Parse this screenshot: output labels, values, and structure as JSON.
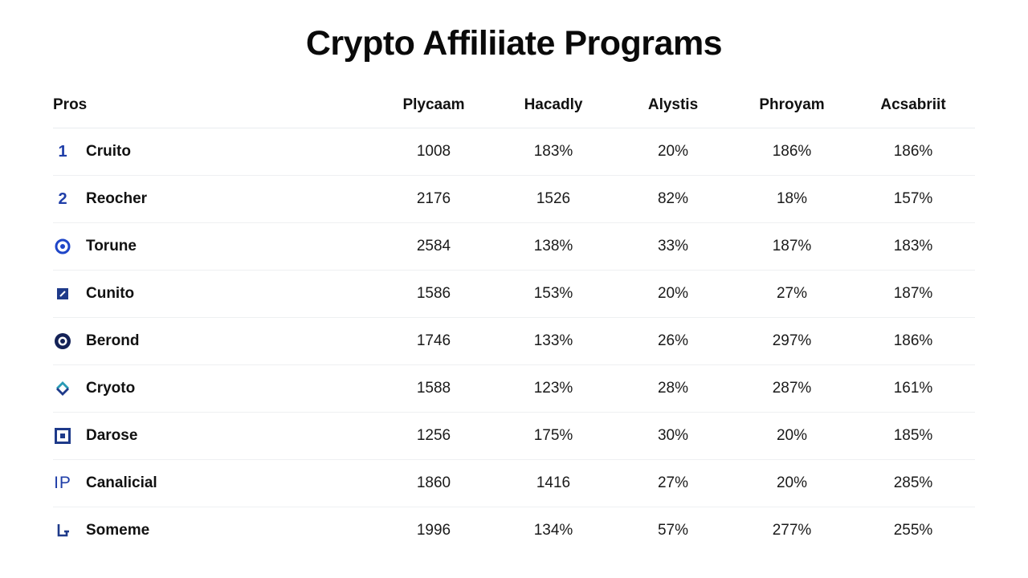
{
  "title": "Crypto Affiliiate Programs",
  "table": {
    "headers": [
      "Pros",
      "Plycaam",
      "Hacadly",
      "Alystis",
      "Phroyam",
      "Acsabriit"
    ],
    "rows": [
      {
        "icon": "number-1-icon",
        "icon_text": "1",
        "name": "Cruito",
        "values": [
          "1008",
          "183%",
          "20%",
          "186%",
          "186%"
        ]
      },
      {
        "icon": "number-2-icon",
        "icon_text": "2",
        "name": "Reocher",
        "values": [
          "2176",
          "1526",
          "82%",
          "18%",
          "157%"
        ]
      },
      {
        "icon": "ring-dot-icon",
        "icon_text": "",
        "name": "Torune",
        "values": [
          "2584",
          "138%",
          "33%",
          "187%",
          "183%"
        ]
      },
      {
        "icon": "square-slash-icon",
        "icon_text": "",
        "name": "Cunito",
        "values": [
          "1586",
          "153%",
          "20%",
          "27%",
          "187%"
        ]
      },
      {
        "icon": "target-icon",
        "icon_text": "",
        "name": "Berond",
        "values": [
          "1746",
          "133%",
          "26%",
          "297%",
          "186%"
        ]
      },
      {
        "icon": "diamond-icon",
        "icon_text": "",
        "name": "Cryoto",
        "values": [
          "1588",
          "123%",
          "28%",
          "287%",
          "161%"
        ]
      },
      {
        "icon": "square-frame-icon",
        "icon_text": "",
        "name": "Darose",
        "values": [
          "1256",
          "175%",
          "30%",
          "20%",
          "185%"
        ]
      },
      {
        "icon": "ip-letters-icon",
        "icon_text": "IP",
        "name": "Canalicial",
        "values": [
          "1860",
          "1416",
          "27%",
          "20%",
          "285%"
        ]
      },
      {
        "icon": "hook-icon",
        "icon_text": "",
        "name": "Someme",
        "values": [
          "1996",
          "134%",
          "57%",
          "277%",
          "255%"
        ]
      }
    ]
  }
}
